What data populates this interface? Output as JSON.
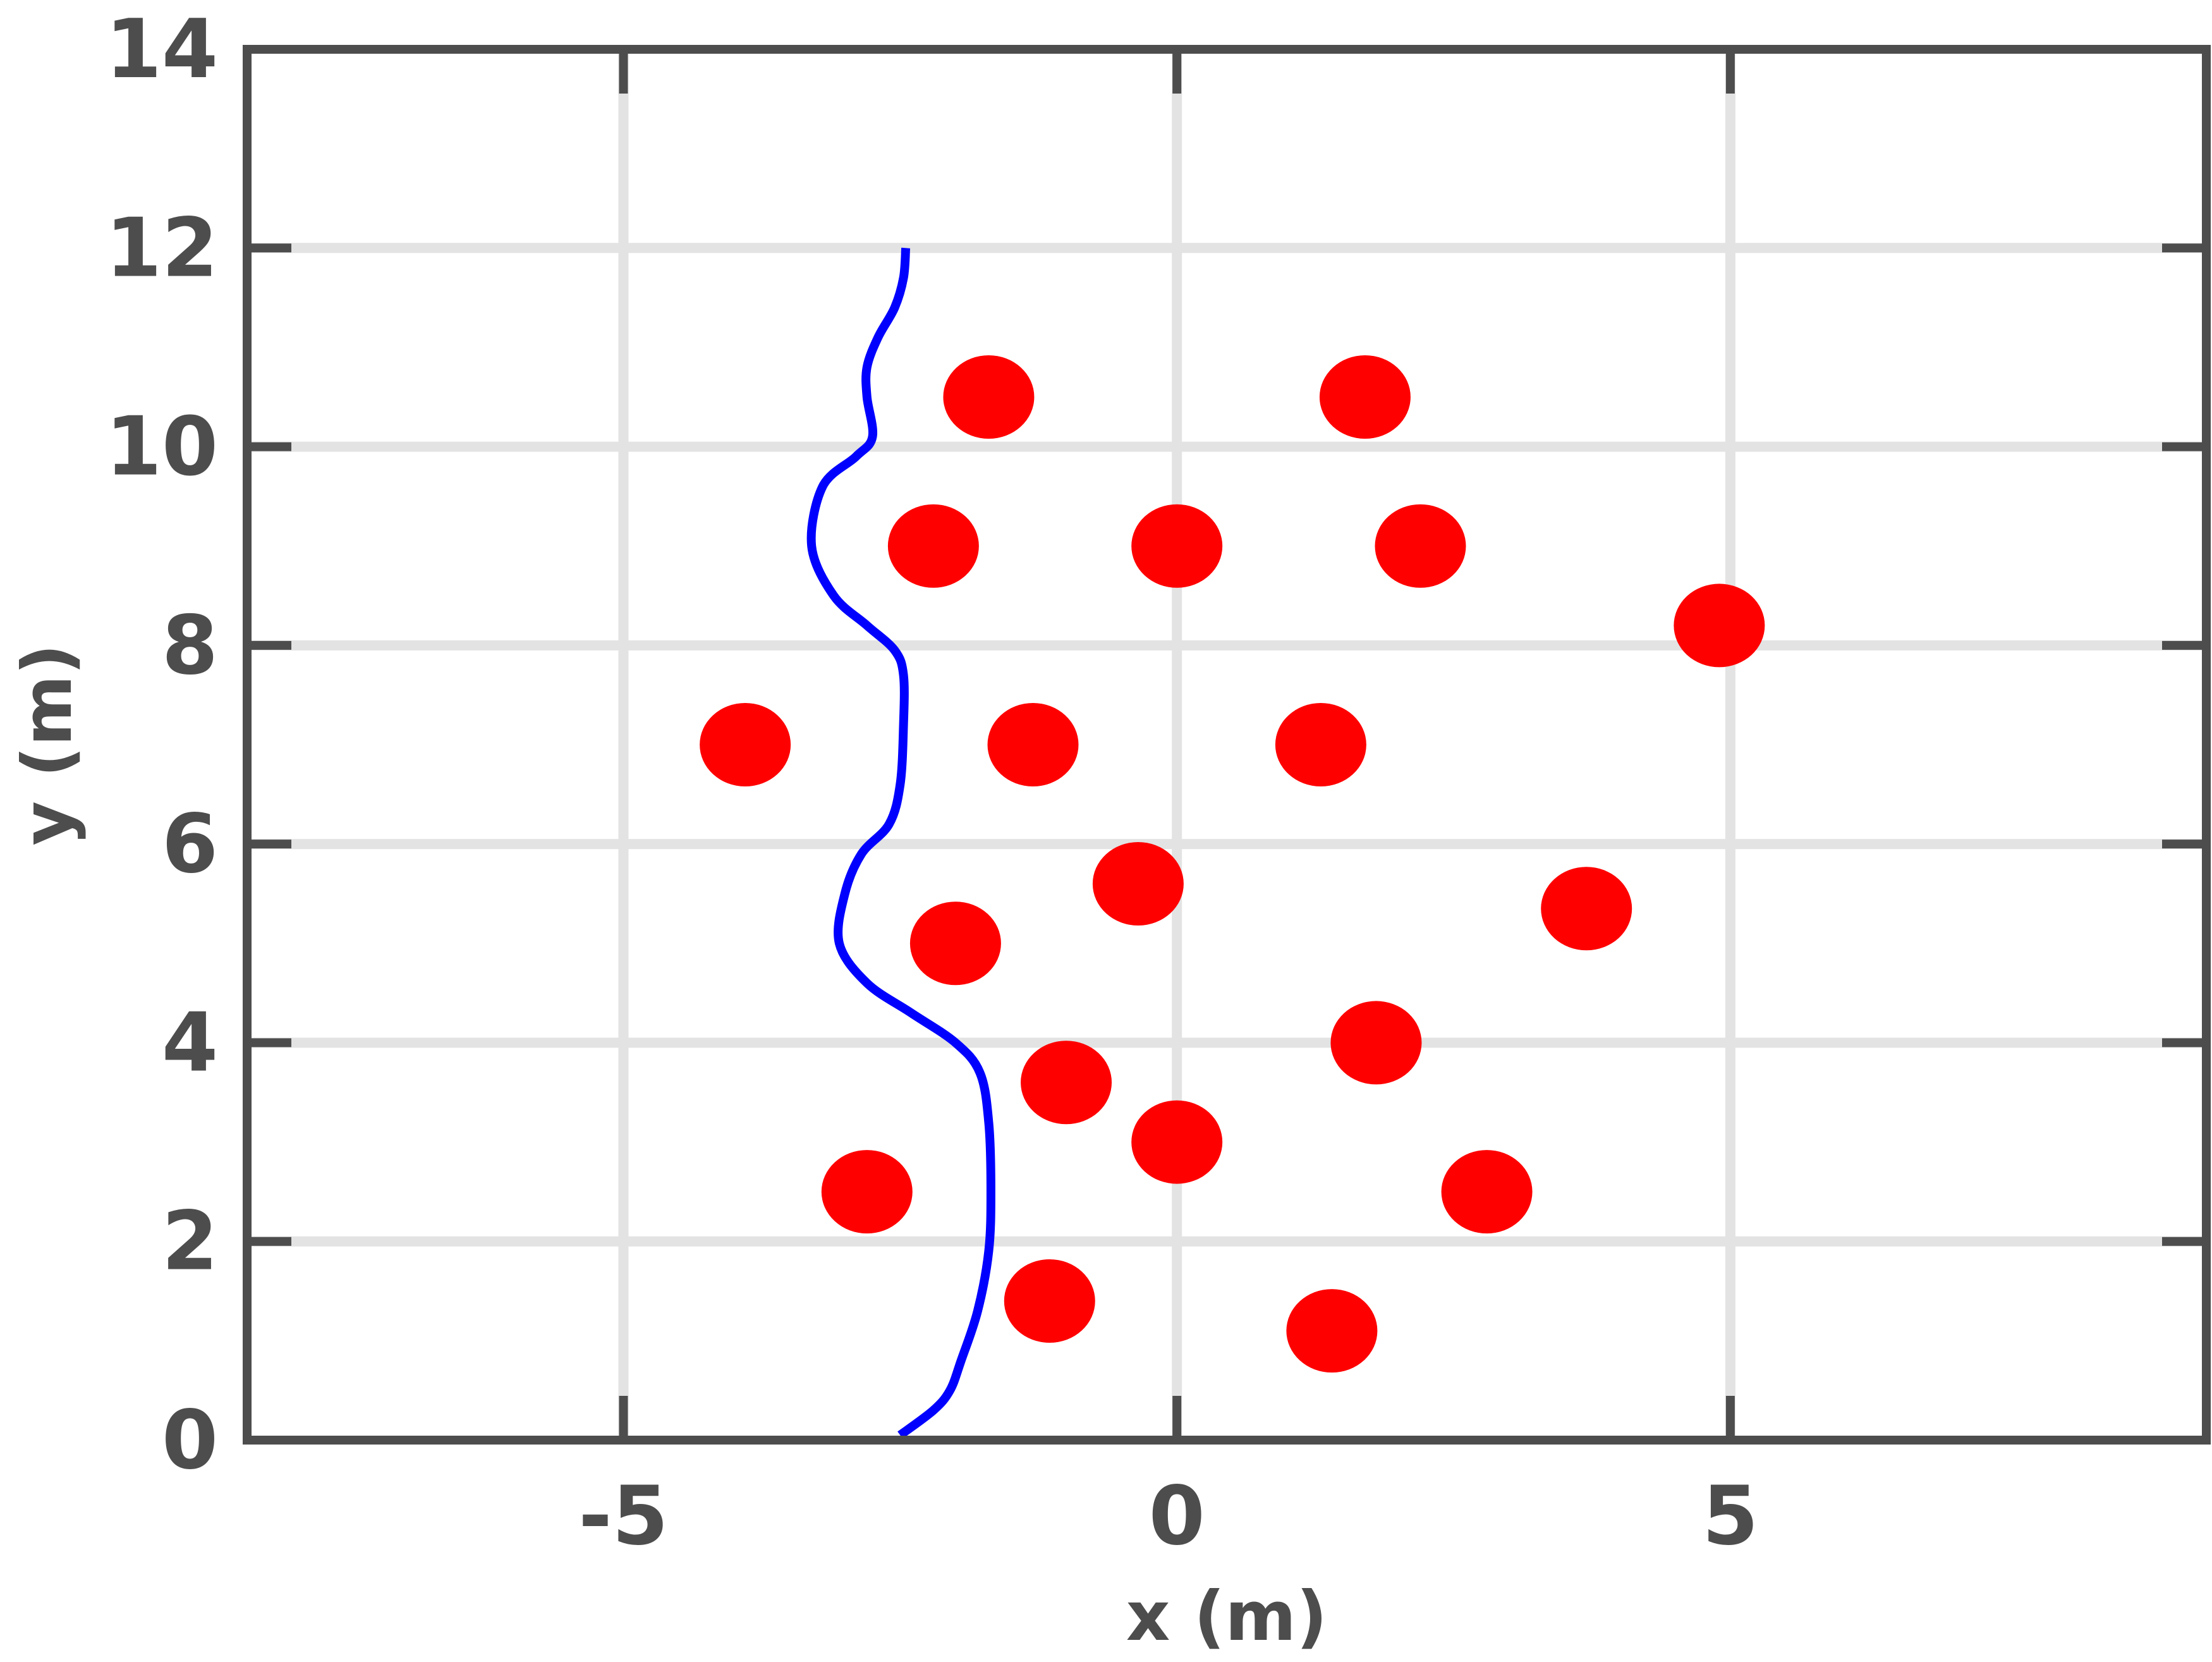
{
  "chart_data": {
    "type": "scatter",
    "xlabel": "x (m)",
    "ylabel": "y (m)",
    "xlim": [
      -8.4,
      9.3
    ],
    "ylim": [
      0,
      14
    ],
    "xticks": [
      -5,
      0,
      5
    ],
    "xtick_labels": [
      "-5",
      "0",
      "5"
    ],
    "yticks": [
      0,
      2,
      4,
      6,
      8,
      10,
      12,
      14
    ],
    "ytick_labels": [
      "0",
      "2",
      "4",
      "6",
      "8",
      "10",
      "12",
      "14"
    ],
    "grid": true,
    "series": [
      {
        "type": "scatter",
        "color": "#ff0000",
        "points": [
          [
            -1.7,
            10.5
          ],
          [
            1.7,
            10.5
          ],
          [
            -2.2,
            9.0
          ],
          [
            0.0,
            9.0
          ],
          [
            2.2,
            9.0
          ],
          [
            4.9,
            8.2
          ],
          [
            -3.9,
            7.0
          ],
          [
            -1.3,
            7.0
          ],
          [
            1.3,
            7.0
          ],
          [
            -0.35,
            5.6
          ],
          [
            3.7,
            5.35
          ],
          [
            -2.0,
            5.0
          ],
          [
            1.8,
            4.0
          ],
          [
            -1.0,
            3.6
          ],
          [
            0.0,
            3.0
          ],
          [
            -2.8,
            2.5
          ],
          [
            2.8,
            2.5
          ],
          [
            -1.15,
            1.4
          ],
          [
            1.4,
            1.1
          ]
        ]
      },
      {
        "type": "line",
        "color": "#0000ff",
        "points": [
          [
            -2.5,
            0.05
          ],
          [
            -2.2,
            0.3
          ],
          [
            -2.05,
            0.5
          ],
          [
            -1.95,
            0.8
          ],
          [
            -1.8,
            1.3
          ],
          [
            -1.7,
            1.9
          ],
          [
            -1.68,
            2.5
          ],
          [
            -1.7,
            3.2
          ],
          [
            -1.78,
            3.7
          ],
          [
            -2.0,
            4.0
          ],
          [
            -2.4,
            4.3
          ],
          [
            -2.8,
            4.6
          ],
          [
            -3.05,
            5.0
          ],
          [
            -3.0,
            5.5
          ],
          [
            -2.85,
            5.9
          ],
          [
            -2.6,
            6.2
          ],
          [
            -2.5,
            6.6
          ],
          [
            -2.47,
            7.2
          ],
          [
            -2.47,
            7.7
          ],
          [
            -2.55,
            7.95
          ],
          [
            -2.8,
            8.2
          ],
          [
            -3.1,
            8.5
          ],
          [
            -3.3,
            9.0
          ],
          [
            -3.2,
            9.6
          ],
          [
            -2.9,
            9.9
          ],
          [
            -2.75,
            10.1
          ],
          [
            -2.8,
            10.5
          ],
          [
            -2.8,
            10.8
          ],
          [
            -2.7,
            11.1
          ],
          [
            -2.55,
            11.4
          ],
          [
            -2.47,
            11.7
          ],
          [
            -2.45,
            12.0
          ]
        ]
      }
    ]
  }
}
